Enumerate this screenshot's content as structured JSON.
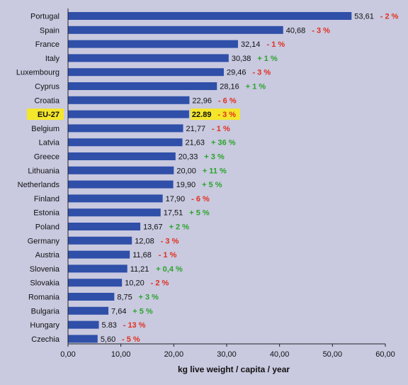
{
  "colors": {
    "background": "#c9c9e0",
    "bar": "#2f4fa8",
    "highlight": "#f4e62a",
    "negative": "#e0301e",
    "positive": "#2aa52a",
    "axis": "#222222"
  },
  "chart_data": {
    "type": "bar",
    "orientation": "horizontal",
    "xlabel": "kg live weight / capita / year",
    "xlim": [
      0,
      60
    ],
    "x_ticks": [
      "0,00",
      "10,00",
      "20,00",
      "30,00",
      "40,00",
      "50,00",
      "60,00"
    ],
    "highlight_category": "EU-27",
    "rows": [
      {
        "category": "Portugal",
        "value": 53.61,
        "value_label": "53,61",
        "change": "- 2 %",
        "change_sign": "neg"
      },
      {
        "category": "Spain",
        "value": 40.68,
        "value_label": "40,68",
        "change": "- 3 %",
        "change_sign": "neg"
      },
      {
        "category": "France",
        "value": 32.14,
        "value_label": "32,14",
        "change": "- 1 %",
        "change_sign": "neg"
      },
      {
        "category": "Italy",
        "value": 30.38,
        "value_label": "30,38",
        "change": "+ 1 %",
        "change_sign": "pos"
      },
      {
        "category": "Luxembourg",
        "value": 29.46,
        "value_label": "29,46",
        "change": "- 3 %",
        "change_sign": "neg"
      },
      {
        "category": "Cyprus",
        "value": 28.16,
        "value_label": "28,16",
        "change": "+ 1 %",
        "change_sign": "pos"
      },
      {
        "category": "Croatia",
        "value": 22.96,
        "value_label": "22,96",
        "change": "- 6 %",
        "change_sign": "neg"
      },
      {
        "category": "EU-27",
        "value": 22.89,
        "value_label": "22.89",
        "change": "- 3 %",
        "change_sign": "neg"
      },
      {
        "category": "Belgium",
        "value": 21.77,
        "value_label": "21,77",
        "change": "- 1 %",
        "change_sign": "neg"
      },
      {
        "category": "Latvia",
        "value": 21.63,
        "value_label": "21,63",
        "change": "+ 36 %",
        "change_sign": "pos"
      },
      {
        "category": "Greece",
        "value": 20.33,
        "value_label": "20,33",
        "change": "+ 3 %",
        "change_sign": "pos"
      },
      {
        "category": "Lithuania",
        "value": 20.0,
        "value_label": "20,00",
        "change": "+ 11 %",
        "change_sign": "pos"
      },
      {
        "category": "Netherlands",
        "value": 19.9,
        "value_label": "19,90",
        "change": "+ 5 %",
        "change_sign": "pos"
      },
      {
        "category": "Finland",
        "value": 17.9,
        "value_label": "17,90",
        "change": "- 6 %",
        "change_sign": "neg"
      },
      {
        "category": "Estonia",
        "value": 17.51,
        "value_label": "17,51",
        "change": "+ 5 %",
        "change_sign": "pos"
      },
      {
        "category": "Poland",
        "value": 13.67,
        "value_label": "13,67",
        "change": "+ 2 %",
        "change_sign": "pos"
      },
      {
        "category": "Germany",
        "value": 12.08,
        "value_label": "12,08",
        "change": "- 3 %",
        "change_sign": "neg"
      },
      {
        "category": "Austria",
        "value": 11.68,
        "value_label": "11,68",
        "change": "- 1 %",
        "change_sign": "neg"
      },
      {
        "category": "Slovenia",
        "value": 11.21,
        "value_label": "11,21",
        "change": "+ 0,4 %",
        "change_sign": "pos"
      },
      {
        "category": "Slovakia",
        "value": 10.2,
        "value_label": "10,20",
        "change": "- 2 %",
        "change_sign": "neg"
      },
      {
        "category": "Romania",
        "value": 8.75,
        "value_label": "8,75",
        "change": "+ 3 %",
        "change_sign": "pos"
      },
      {
        "category": "Bulgaria",
        "value": 7.64,
        "value_label": "7,64",
        "change": "+ 5 %",
        "change_sign": "pos"
      },
      {
        "category": "Hungary",
        "value": 5.83,
        "value_label": "5.83",
        "change": "- 13 %",
        "change_sign": "neg"
      },
      {
        "category": "Czechia",
        "value": 5.6,
        "value_label": "5,60",
        "change": "- 5 %",
        "change_sign": "neg"
      }
    ]
  }
}
